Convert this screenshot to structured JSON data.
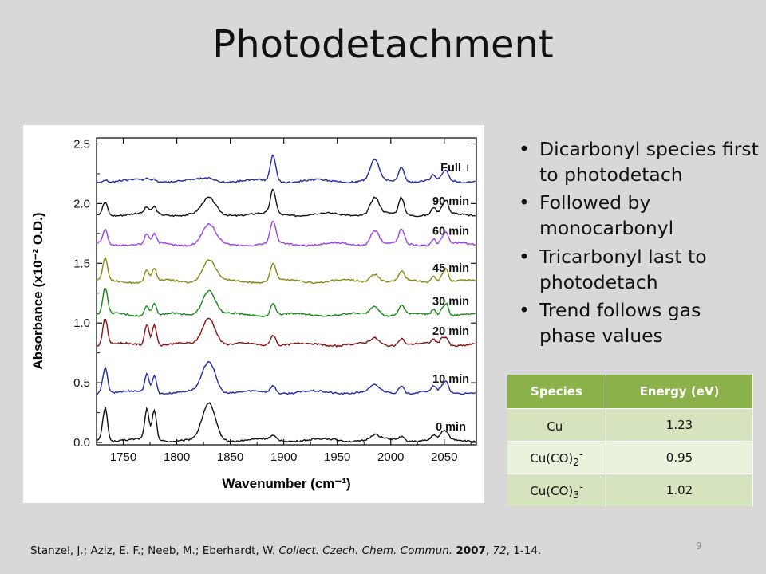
{
  "slide": {
    "title": "Photodetachment",
    "bullets": [
      "Dicarbonyl species first to photodetach",
      "Followed by monocarbonyl",
      "Tricarbonyl last to photodetach",
      "Trend follows gas phase values"
    ],
    "table": {
      "headers": [
        "Species",
        "Energy (eV)"
      ],
      "rows": [
        {
          "species": "Cu",
          "sub": "",
          "sup": "-",
          "energy": "1.23"
        },
        {
          "species": "Cu(CO)",
          "sub": "2",
          "sup": "-",
          "energy": "0.95"
        },
        {
          "species": "Cu(CO)",
          "sub": "3",
          "sup": "-",
          "energy": "1.02"
        }
      ]
    },
    "citation": {
      "authors": "Stanzel, J.; Aziz, E. F.; Neeb, M.; Eberhardt, W.",
      "journal": "Collect. Czech. Chem. Commun.",
      "year": "2007",
      "volume": "72",
      "pages": ", 1-14."
    },
    "page_number": "9"
  },
  "chart_data": {
    "type": "line",
    "xlabel": "Wavenumber (cm⁻¹)",
    "ylabel": "Absorbance (x10⁻² O.D.)",
    "xlim": [
      1725,
      2080
    ],
    "ylim": [
      -0.02,
      2.55
    ],
    "xticks": [
      1750,
      1800,
      1850,
      1900,
      1950,
      2000,
      2050
    ],
    "yticks": [
      0.0,
      0.5,
      1.0,
      1.5,
      2.0,
      2.5
    ],
    "peaks_cm1": [
      1733,
      1772,
      1779,
      1830,
      1890,
      1985,
      2010,
      2040,
      2048,
      2052
    ],
    "series": [
      {
        "name": "0 min",
        "color": "#111111",
        "baseline": 0.02,
        "peaks": [
          0.28,
          0.25,
          0.25,
          0.3,
          0.03,
          0.04,
          0.03,
          0.04,
          0.05,
          0.06
        ]
      },
      {
        "name": "10 min",
        "color": "#1e2aa8",
        "baseline": 0.42,
        "peaks": [
          0.22,
          0.15,
          0.15,
          0.26,
          0.06,
          0.05,
          0.06,
          0.04,
          0.04,
          0.08
        ]
      },
      {
        "name": "20 min",
        "color": "#8b1010",
        "baseline": 0.82,
        "peaks": [
          0.22,
          0.18,
          0.18,
          0.23,
          0.09,
          0.05,
          0.06,
          0.04,
          0.05,
          0.06
        ]
      },
      {
        "name": "30 min",
        "color": "#118a11",
        "baseline": 1.07,
        "peaks": [
          0.22,
          0.09,
          0.1,
          0.21,
          0.1,
          0.08,
          0.08,
          0.05,
          0.05,
          0.1
        ]
      },
      {
        "name": "45 min",
        "color": "#888811",
        "baseline": 1.35,
        "peaks": [
          0.18,
          0.1,
          0.1,
          0.18,
          0.15,
          0.07,
          0.08,
          0.05,
          0.05,
          0.1
        ]
      },
      {
        "name": "60 min",
        "color": "#9a3fee",
        "baseline": 1.66,
        "peaks": [
          0.12,
          0.08,
          0.08,
          0.16,
          0.19,
          0.12,
          0.12,
          0.05,
          0.05,
          0.09
        ]
      },
      {
        "name": "90 min",
        "color": "#111111",
        "baseline": 1.91,
        "peaks": [
          0.11,
          0.05,
          0.06,
          0.13,
          0.2,
          0.14,
          0.14,
          0.06,
          0.05,
          0.1
        ]
      },
      {
        "name": "Full",
        "color": "#1e2aa8",
        "baseline": 2.19,
        "peaks": [
          0.02,
          0.02,
          0.02,
          0.02,
          0.22,
          0.17,
          0.13,
          0.04,
          0.04,
          0.08
        ]
      }
    ]
  }
}
